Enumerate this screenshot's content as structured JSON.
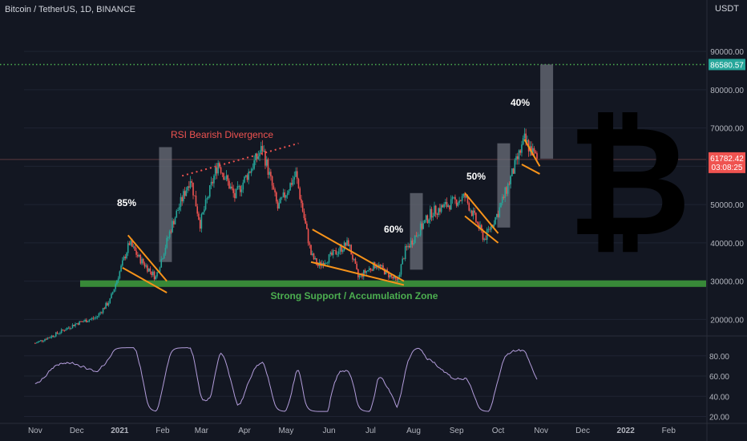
{
  "header": {
    "symbol_line": "Bitcoin / TetherUS, 1D, BINANCE",
    "unit": "USDT"
  },
  "colors": {
    "background": "#131722",
    "candle_up": "#26a69a",
    "candle_down": "#ef5350",
    "support": "#3a8f3a",
    "pattern_lines": "#f7931a",
    "target_line": "#4caf50",
    "current_price_tag": "#ef5350",
    "target_tag": "#26a69a",
    "annotation_red": "#ef5350",
    "measure_boxes": "#6b6f7a"
  },
  "chart_data": {
    "type": "candlestick",
    "title": "Bitcoin / TetherUS, 1D, BINANCE",
    "y_axis": {
      "unit": "USDT",
      "price_ticks": [
        20000,
        30000,
        40000,
        50000,
        60000,
        70000,
        80000,
        90000
      ],
      "price_tick_labels": [
        "20000.00",
        "30000.00",
        "40000.00",
        "50000.00",
        "60000.00",
        "70000.00",
        "80000.00",
        "90000.00"
      ],
      "oscillator_ticks": [
        20,
        40,
        60,
        80
      ],
      "oscillator_tick_labels": [
        "20.00",
        "40.00",
        "60.00",
        "80.00"
      ]
    },
    "x_axis": {
      "tick_labels": [
        "Nov",
        "Dec",
        "2021",
        "Feb",
        "Mar",
        "Apr",
        "May",
        "Jun",
        "Jul",
        "Aug",
        "Sep",
        "Oct",
        "Nov",
        "Dec",
        "2022",
        "Feb"
      ],
      "range": [
        "2020-10-24",
        "2022-02-28"
      ]
    },
    "price_series_approx": [
      [
        "2020-11-01",
        13800
      ],
      [
        "2020-11-15",
        16000
      ],
      [
        "2020-12-01",
        19000
      ],
      [
        "2020-12-15",
        20500
      ],
      [
        "2020-12-25",
        25000
      ],
      [
        "2021-01-08",
        40000
      ],
      [
        "2021-01-15",
        36000
      ],
      [
        "2021-01-27",
        31000
      ],
      [
        "2021-02-08",
        45000
      ],
      [
        "2021-02-21",
        57000
      ],
      [
        "2021-02-28",
        45000
      ],
      [
        "2021-03-13",
        61000
      ],
      [
        "2021-03-25",
        52000
      ],
      [
        "2021-04-14",
        64800
      ],
      [
        "2021-04-25",
        49000
      ],
      [
        "2021-05-08",
        58000
      ],
      [
        "2021-05-19",
        37000
      ],
      [
        "2021-05-24",
        34000
      ],
      [
        "2021-06-15",
        40000
      ],
      [
        "2021-06-22",
        31000
      ],
      [
        "2021-07-05",
        34500
      ],
      [
        "2021-07-20",
        29800
      ],
      [
        "2021-07-26",
        38000
      ],
      [
        "2021-08-14",
        48000
      ],
      [
        "2021-09-07",
        52000
      ],
      [
        "2021-09-21",
        41000
      ],
      [
        "2021-10-01",
        48000
      ],
      [
        "2021-10-20",
        66900
      ],
      [
        "2021-10-29",
        61782
      ]
    ],
    "current_price": {
      "value": 61782.42,
      "label": "61782.42",
      "countdown": "03:08:25"
    },
    "target_level": {
      "value": 86580.57,
      "label": "86580.57"
    },
    "support_zone": {
      "low": 28500,
      "high": 30200,
      "label": "Strong Support / Accumulation Zone"
    },
    "annotations": [
      {
        "text": "RSI Bearish Divergence",
        "color": "red"
      },
      {
        "text": "85%"
      },
      {
        "text": "60%"
      },
      {
        "text": "50%"
      },
      {
        "text": "40%"
      }
    ],
    "measure_moves": [
      {
        "label": "85%",
        "from": 35000,
        "to": 65000,
        "date": "2021-02-03"
      },
      {
        "label": "60%",
        "from": 33000,
        "to": 53000,
        "date": "2021-08-03"
      },
      {
        "label": "50%",
        "from": 44000,
        "to": 66000,
        "date": "2021-10-05"
      },
      {
        "label": "40%",
        "from": 62000,
        "to": 86580,
        "date": "2021-11-05"
      }
    ],
    "wedges": [
      {
        "top": [
          [
            "2021-01-07",
            42000
          ],
          [
            "2021-02-04",
            30000
          ]
        ],
        "bottom": [
          [
            "2021-01-03",
            33500
          ],
          [
            "2021-02-04",
            27000
          ]
        ]
      },
      {
        "top": [
          [
            "2021-05-20",
            43500
          ],
          [
            "2021-07-25",
            30000
          ]
        ],
        "bottom": [
          [
            "2021-05-19",
            35000
          ],
          [
            "2021-07-25",
            29000
          ]
        ]
      },
      {
        "top": [
          [
            "2021-09-07",
            53000
          ],
          [
            "2021-10-01",
            42500
          ]
        ],
        "bottom": [
          [
            "2021-09-07",
            47000
          ],
          [
            "2021-10-01",
            40000
          ]
        ]
      },
      {
        "top": [
          [
            "2021-10-20",
            67000
          ],
          [
            "2021-10-31",
            60000
          ]
        ],
        "bottom": [
          [
            "2021-10-18",
            60500
          ],
          [
            "2021-10-31",
            58000
          ]
        ]
      }
    ],
    "divergence_line": [
      [
        "2021-02-15",
        57500
      ],
      [
        "2021-05-10",
        66000
      ]
    ]
  }
}
